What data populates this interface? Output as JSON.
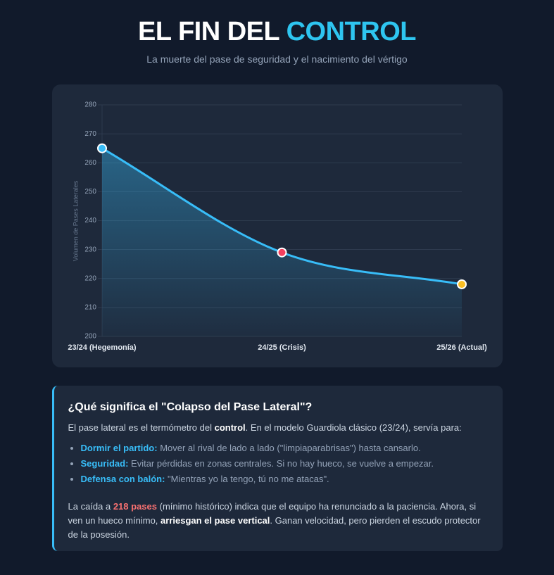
{
  "header": {
    "title_start": "EL FIN DEL",
    "title_highlight": "CONTROL",
    "subtitle": "La muerte del pase de seguridad y el nacimiento del vértigo"
  },
  "chart_data": {
    "type": "line",
    "y_label": "Volumen de Pases Laterales",
    "categories": [
      "23/24 (Hegemonía)",
      "24/25 (Crisis)",
      "25/26 (Actual)"
    ],
    "values": [
      265,
      229,
      218
    ],
    "color": "#38bdf8",
    "point_colors": [
      "#38bdf8",
      "#f43f5e",
      "#fbbf24"
    ],
    "ylim": [
      200,
      280
    ],
    "yticks": [
      200,
      210,
      220,
      230,
      240,
      250,
      260,
      270,
      280
    ],
    "grid": true,
    "area": true,
    "smooth": true
  },
  "info": {
    "heading": "¿Qué significa el \"Colapso del Pase Lateral\"?",
    "intro": [
      "El pase lateral es el termómetro del ",
      "control",
      ". En el modelo Guardiola clásico (23/24), servía para:"
    ],
    "items": [
      {
        "term": "Dormir el partido:",
        "text": "Mover al rival de lado a lado (\"limpiaparabrisas\") hasta cansarlo."
      },
      {
        "term": "Seguridad:",
        "text": "Evitar pérdidas en zonas centrales. Si no hay hueco, se vuelve a empezar."
      },
      {
        "term": "Defensa con balón:",
        "text": "\"Mientras yo la tengo, tú no me atacas\"."
      }
    ],
    "conclusion": [
      "La caída a ",
      "218 pases",
      " (mínimo histórico) indica que el equipo ha renunciado a la paciencia. Ahora, si ven un hueco mínimo, ",
      "arriesgan el pase vertical",
      ". Ganan velocidad, pero pierden el escudo protector de la posesión."
    ]
  }
}
